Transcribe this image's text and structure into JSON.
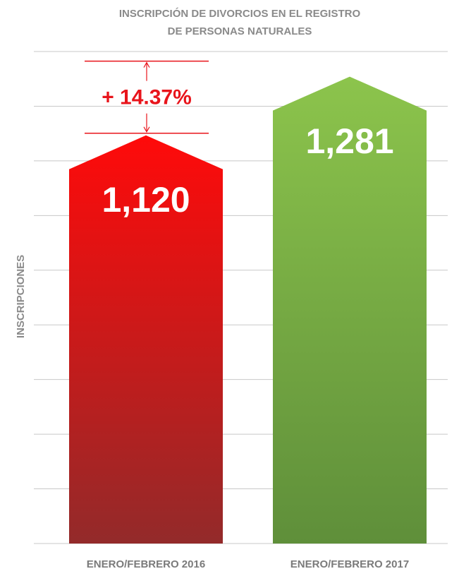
{
  "chart_data": {
    "type": "bar",
    "title": [
      "INSCRIPCIÓN DE DIVORCIOS EN EL REGISTRO",
      "DE PERSONAS NATURALES"
    ],
    "y_label": "INSCRIPCIONES",
    "categories": [
      "ENERO/FEBRERO 2016",
      "ENERO/FEBRERO 2017"
    ],
    "values": [
      1120,
      1281
    ],
    "value_labels": [
      "1,120",
      "1,281"
    ],
    "colors": [
      [
        "#ff0a0a",
        "#932a2a"
      ],
      [
        "#8cc44c",
        "#5f8f3a"
      ]
    ],
    "annotation": "+ 14.37%",
    "annotation_color": "#e8141b",
    "ylim": [
      0,
      1350
    ],
    "grid": true
  }
}
